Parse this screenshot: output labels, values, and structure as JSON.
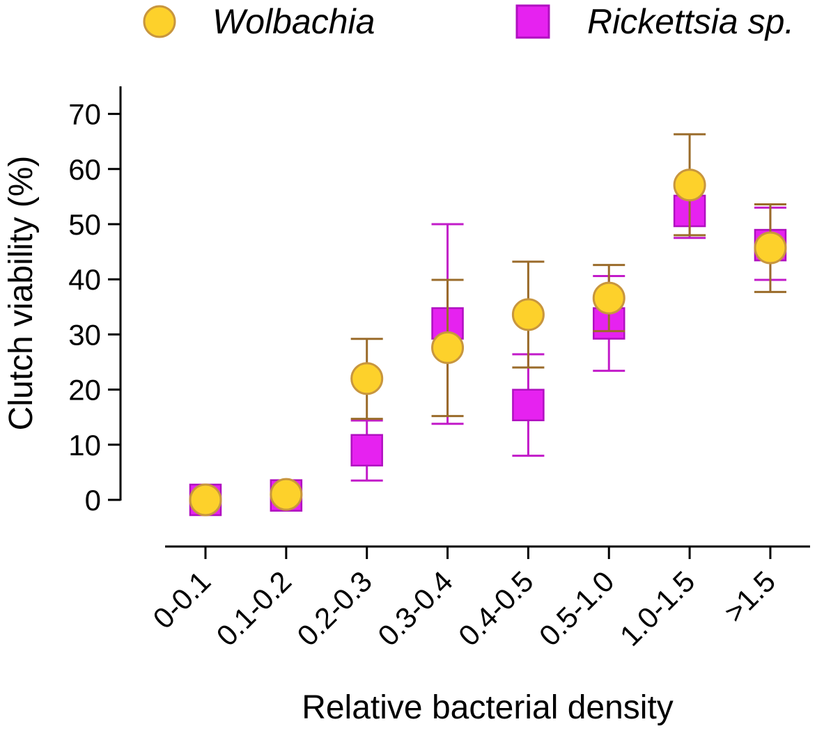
{
  "chart_data": {
    "type": "scatter",
    "xlabel": "Relative bacterial density",
    "ylabel": "Clutch viability (%)",
    "categories": [
      "0-0.1",
      "0.1-0.2",
      "0.2-0.3",
      "0.3-0.4",
      "0.4-0.5",
      "0.5-1.0",
      "1.0-1.5",
      ">1.5"
    ],
    "ylim": [
      0,
      75
    ],
    "yticks": [
      0,
      10,
      20,
      30,
      40,
      50,
      60,
      70
    ],
    "grid": false,
    "legend": "top",
    "series": [
      {
        "name": "Wolbachia",
        "marker": "circle",
        "fill": "#FDD12B",
        "stroke": "#C8963E",
        "error_color": "#9A6B2A",
        "values": [
          0,
          1,
          22,
          27.6,
          33.6,
          36.6,
          57.1,
          45.7
        ],
        "error_low": [
          null,
          null,
          14.7,
          15.2,
          24.0,
          30.6,
          48.0,
          37.7
        ],
        "error_high": [
          null,
          null,
          29.2,
          39.9,
          43.2,
          42.6,
          66.3,
          53.6
        ]
      },
      {
        "name": "Rickettsia sp.",
        "marker": "square",
        "fill": "#E622F0",
        "stroke": "#B010C0",
        "error_color": "#C21BC9",
        "values": [
          0,
          0.8,
          9,
          32,
          17.2,
          32,
          52.4,
          46.2
        ],
        "error_low": [
          null,
          null,
          3.5,
          13.8,
          8.0,
          23.4,
          47.5,
          39.9
        ],
        "error_high": [
          null,
          null,
          14.4,
          50.0,
          26.4,
          40.6,
          53.3,
          53.0
        ]
      }
    ]
  }
}
